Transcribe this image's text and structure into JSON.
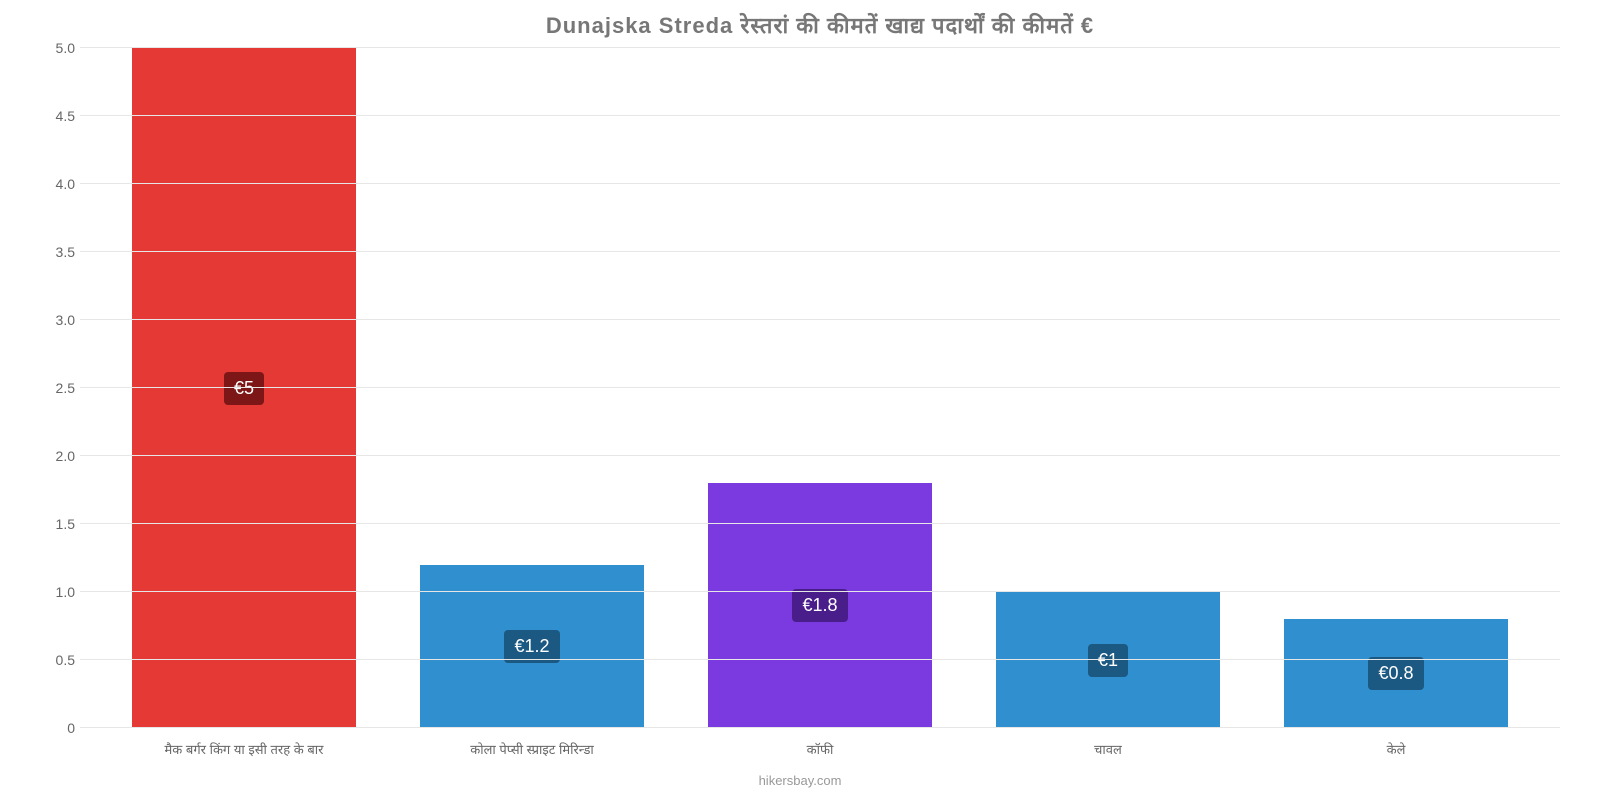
{
  "chart": {
    "type": "bar",
    "title": "Dunajska Streda रेस्तरां की कीमतें खाद्य पदार्थों की कीमतें €",
    "title_fontsize": 22,
    "title_color": "#777777",
    "background_color": "#ffffff",
    "grid_color": "#e6e6e6",
    "axis_label_color": "#666666",
    "axis_label_fontsize": 14,
    "categories": [
      "मैक बर्गर किंग या इसी तरह के बार",
      "कोला पेप्सी स्प्राइट मिरिन्डा",
      "कॉफी",
      "चावल",
      "केले"
    ],
    "values": [
      5.0,
      1.2,
      1.8,
      1.0,
      0.8
    ],
    "value_labels": [
      "€5",
      "€1.2",
      "€1.8",
      "€1",
      "€0.8"
    ],
    "bar_colors": [
      "#e53935",
      "#2f8fcf",
      "#7b39e0",
      "#2f8fcf",
      "#2f8fcf"
    ],
    "label_bg_colors": [
      "#7d1616",
      "#1b5882",
      "#4a1e8a",
      "#1b5882",
      "#1b5882"
    ],
    "label_text_color": "#ffffff",
    "ylim": [
      0,
      5.0
    ],
    "ytick_step": 0.5,
    "yticks": [
      "0",
      "0.5",
      "1.0",
      "1.5",
      "2.0",
      "2.5",
      "3.0",
      "3.5",
      "4.0",
      "4.5",
      "5.0"
    ],
    "bar_width": 0.78,
    "attribution": "hikersbay.com"
  }
}
